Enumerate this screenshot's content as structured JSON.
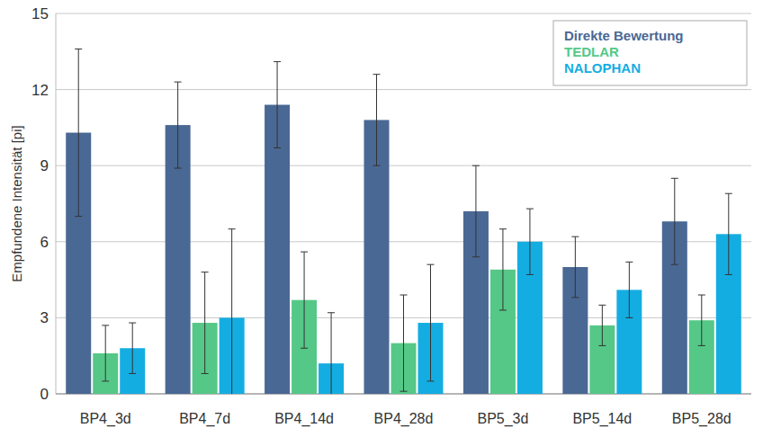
{
  "chart_data": {
    "type": "bar",
    "y_label": "Empfundene Intensität [pi]",
    "categories": [
      "BP4_3d",
      "BP4_7d",
      "BP4_14d",
      "BP4_28d",
      "BP5_3d",
      "BP5_14d",
      "BP5_28d"
    ],
    "series": [
      {
        "name": "Direkte Bewertung",
        "color": "#4a6894",
        "values": [
          10.3,
          10.6,
          11.4,
          10.8,
          7.2,
          5.0,
          6.8
        ],
        "errors": [
          3.3,
          1.7,
          1.7,
          1.8,
          1.8,
          1.2,
          1.7
        ]
      },
      {
        "name": "TEDLAR",
        "color": "#55c887",
        "values": [
          1.6,
          2.8,
          3.7,
          2.0,
          4.9,
          2.7,
          2.9
        ],
        "errors": [
          1.1,
          2.0,
          1.9,
          1.9,
          1.6,
          0.8,
          1.0
        ]
      },
      {
        "name": "NALOPHAN",
        "color": "#14ade2",
        "values": [
          1.8,
          3.0,
          1.2,
          2.8,
          6.0,
          4.1,
          6.3
        ],
        "errors": [
          1.0,
          3.5,
          2.0,
          2.3,
          1.3,
          1.1,
          1.6
        ]
      }
    ],
    "ylim": [
      0,
      15
    ],
    "yticks": [
      0,
      3,
      6,
      9,
      12,
      15
    ],
    "grid": true,
    "legend": "top-right"
  }
}
